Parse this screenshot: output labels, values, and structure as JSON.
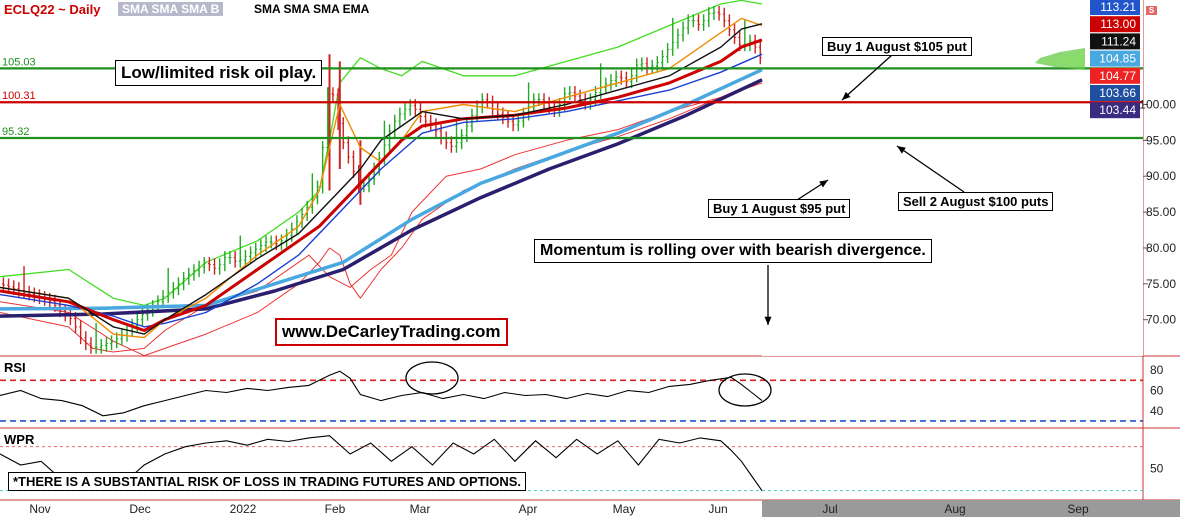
{
  "header": {
    "symbol": "ECLQ22 ~ Daily",
    "studies_tab": "SMA SMA SMA B",
    "studies_list": "SMA SMA SMA EMA",
    "control_label": "S"
  },
  "annotations": {
    "headline": "Low/limited risk oil play.",
    "website": "www.DeCarleyTrading.com",
    "buy_put_105": "Buy 1 August $105 put",
    "buy_put_95": "Buy 1 August $95 put",
    "sell_puts_100": "Sell 2 August $100 puts",
    "momentum": "Momentum is rolling over with bearish divergence.",
    "disclaimer": "*THERE IS A SUBSTANTIAL RISK OF LOSS IN TRADING FUTURES AND OPTIONS."
  },
  "colors": {
    "level_green": "#1f8f1f",
    "level_red": "#cc0000",
    "sma_fast_red": "#cc0000",
    "sma_long_blue": "#4aa8e0",
    "ema_purple": "#2a1f6e",
    "bollinger": "#44dd22",
    "thin_red": "#ee3333",
    "orange": "#f08c00",
    "price_up": "#22aa22",
    "price_down": "#cc2222"
  },
  "chart_data": [
    {
      "type": "line",
      "title": "ECLQ22 ~ Daily",
      "x_labels": [
        "Nov",
        "Dec",
        "2022",
        "Feb",
        "Mar",
        "Apr",
        "May",
        "Jun",
        "Jul",
        "Aug",
        "Sep"
      ],
      "y_ticks": [
        70,
        75,
        80,
        85,
        90,
        95,
        100
      ],
      "y_tick_labels": [
        "70.00",
        "75.00",
        "80.00",
        "85.00",
        "90.00",
        "95.00",
        "100.00"
      ],
      "ylim": [
        65.5,
        114
      ],
      "horizontal_levels": [
        {
          "value": 105.03,
          "label": "105.03",
          "color": "green"
        },
        {
          "value": 100.31,
          "label": "100.31",
          "color": "red"
        },
        {
          "value": 95.32,
          "label": "95.32",
          "color": "green"
        }
      ],
      "price_tags": [
        {
          "value": 113.21,
          "label": "113.21",
          "color": "#2255cc"
        },
        {
          "value": 113.0,
          "label": "113.00",
          "color": "#cc0000"
        },
        {
          "value": 111.24,
          "label": "111.24",
          "color": "#111111"
        },
        {
          "value": 104.85,
          "label": "104.85",
          "color": "#4aa8e0"
        },
        {
          "value": 104.77,
          "label": "104.77",
          "color": "#ee2222"
        },
        {
          "value": 103.66,
          "label": "103.66",
          "color": "#1f4fa0"
        },
        {
          "value": 103.44,
          "label": "103.44",
          "color": "#3a2a80"
        }
      ],
      "series": [
        {
          "key": "close",
          "x": [
            0,
            3,
            6,
            9,
            12,
            15,
            18,
            21,
            24,
            27,
            30,
            33,
            36,
            39,
            42,
            45,
            48,
            51,
            54,
            57,
            60,
            63,
            66,
            69,
            72,
            75,
            78,
            81,
            84,
            87,
            90,
            93,
            96,
            99,
            102,
            105,
            108,
            111,
            114,
            117,
            120,
            123,
            126,
            129,
            132,
            135,
            138,
            141,
            144,
            147,
            150,
            153,
            156,
            159,
            162,
            165,
            168,
            171,
            174,
            177,
            180,
            183,
            186,
            189,
            192,
            195,
            198,
            201,
            204,
            207,
            210,
            213,
            216,
            219,
            222
          ],
          "y": [
            75,
            74.5,
            74,
            73.5,
            73,
            72.5,
            71,
            70,
            67,
            66,
            66.5,
            67,
            68,
            69.5,
            71,
            72,
            73.5,
            74.5,
            76,
            77,
            78,
            77,
            79,
            78,
            79,
            80,
            81,
            80.5,
            82,
            84,
            86,
            89,
            104,
            96,
            92,
            88,
            90,
            93,
            97,
            99,
            100,
            98,
            97,
            95,
            94,
            96,
            99,
            101,
            99,
            98,
            97,
            99,
            101,
            100,
            99,
            102,
            101,
            100,
            102,
            103,
            104,
            103,
            106,
            105,
            106,
            108,
            110,
            112,
            111,
            113,
            112.5,
            110,
            108,
            109,
            106
          ]
        },
        {
          "key": "bollinger_upper",
          "x": [
            0,
            20,
            33,
            42,
            48,
            60,
            75,
            87,
            93,
            96,
            99,
            105,
            111,
            117,
            123,
            135,
            150,
            165,
            180,
            195,
            210,
            216,
            222
          ],
          "y": [
            76,
            77,
            73,
            72,
            73,
            78,
            81,
            85,
            88,
            95,
            103,
            106.5,
            105,
            104,
            106,
            104,
            104,
            106,
            108,
            111,
            114,
            114.5,
            114
          ]
        },
        {
          "key": "bollinger_lower",
          "x": [
            0,
            20,
            27,
            33,
            42,
            48,
            60,
            75,
            87,
            90,
            96,
            102,
            108,
            114,
            120,
            130,
            140,
            150,
            165,
            180,
            195,
            210,
            222
          ],
          "y": [
            71,
            69,
            66,
            65.5,
            66,
            68.5,
            72,
            74,
            78,
            79,
            76,
            74.5,
            77,
            79,
            85,
            90,
            91,
            93,
            95,
            96.5,
            99,
            101,
            103.5
          ]
        },
        {
          "key": "sma_black",
          "x": [
            0,
            20,
            33,
            42,
            48,
            60,
            75,
            87,
            93,
            99,
            105,
            111,
            117,
            123,
            135,
            150,
            165,
            180,
            195,
            210,
            216,
            222
          ],
          "y": [
            74.5,
            73,
            69,
            68,
            70,
            73.5,
            78.5,
            82,
            85,
            88,
            91,
            95,
            97,
            99,
            98,
            98.5,
            100,
            102,
            104,
            108,
            110.5,
            111.24
          ]
        },
        {
          "key": "sma_red",
          "x": [
            0,
            20,
            33,
            42,
            48,
            60,
            75,
            87,
            93,
            99,
            105,
            111,
            117,
            123,
            135,
            150,
            165,
            180,
            195,
            210,
            216,
            222
          ],
          "y": [
            74,
            72.5,
            70,
            68.5,
            70,
            72,
            77,
            81,
            83,
            86,
            89,
            92,
            95,
            97,
            98,
            98.5,
            99.5,
            101,
            103,
            106,
            108,
            109
          ]
        },
        {
          "key": "sma_orange",
          "x": [
            0,
            20,
            33,
            42,
            48,
            60,
            75,
            87,
            93,
            96,
            99,
            105,
            111,
            117,
            123,
            135,
            150,
            165,
            180,
            195,
            210,
            216,
            222
          ],
          "y": [
            74.5,
            73,
            68,
            67.5,
            70,
            73,
            79,
            83,
            88,
            94,
            100,
            94,
            92,
            95,
            99,
            100,
            99,
            101,
            103,
            105,
            110,
            112,
            111
          ]
        },
        {
          "key": "sma_blue_fast",
          "x": [
            0,
            20,
            33,
            42,
            48,
            60,
            75,
            87,
            93,
            99,
            105,
            111,
            117,
            123,
            135,
            150,
            165,
            180,
            195,
            210,
            222
          ],
          "y": [
            73.5,
            72,
            70.5,
            69,
            69.5,
            71,
            75,
            79,
            82,
            85,
            88,
            91,
            93.5,
            96,
            97.5,
            98,
            99,
            100.5,
            102,
            104.5,
            107
          ]
        },
        {
          "key": "thin_red",
          "x": [
            0,
            20,
            33,
            42,
            48,
            60,
            75,
            87,
            93,
            96,
            99,
            102,
            105,
            111,
            117,
            123,
            135,
            150,
            165,
            180,
            195,
            210,
            216,
            222
          ],
          "y": [
            72.5,
            71,
            67,
            65,
            66,
            68,
            71,
            75,
            78,
            80,
            79,
            75,
            73,
            77,
            80,
            84,
            88,
            91,
            93.5,
            95.5,
            98,
            101,
            102,
            103
          ]
        },
        {
          "key": "sma_long_lightblue",
          "x": [
            0,
            30,
            60,
            80,
            100,
            120,
            140,
            160,
            180,
            200,
            222
          ],
          "y": [
            71.5,
            71.6,
            72,
            75,
            78,
            84,
            89,
            92.5,
            96,
            100,
            104.85
          ]
        },
        {
          "key": "ema_purple",
          "x": [
            0,
            30,
            60,
            80,
            100,
            120,
            140,
            160,
            180,
            200,
            222
          ],
          "y": [
            70.5,
            70.8,
            71.5,
            74,
            77,
            82.5,
            87,
            91,
            94.5,
            98.5,
            103.44
          ]
        }
      ]
    },
    {
      "type": "line",
      "title": "RSI",
      "y_ticks": [
        40,
        60,
        80
      ],
      "reference_levels": [
        70,
        30
      ],
      "ylim": [
        25,
        90
      ],
      "series": [
        {
          "name": "RSI",
          "x": [
            0,
            6,
            12,
            18,
            24,
            30,
            36,
            42,
            48,
            54,
            60,
            66,
            72,
            78,
            84,
            90,
            96,
            99,
            102,
            105,
            111,
            117,
            123,
            129,
            135,
            141,
            147,
            153,
            159,
            165,
            171,
            177,
            183,
            189,
            195,
            201,
            207,
            213,
            216,
            219,
            222
          ],
          "y": [
            55,
            60,
            52,
            50,
            45,
            35,
            38,
            45,
            50,
            55,
            60,
            58,
            62,
            60,
            63,
            65,
            75,
            79,
            72,
            56,
            50,
            55,
            58,
            52,
            56,
            52,
            58,
            55,
            56,
            52,
            57,
            54,
            60,
            58,
            64,
            66,
            70,
            73,
            66,
            58,
            50
          ]
        }
      ]
    },
    {
      "type": "line",
      "title": "WPR",
      "y_ticks": [
        50
      ],
      "reference_levels": [
        80,
        20
      ],
      "ylim": [
        10,
        100
      ],
      "series": [
        {
          "name": "WPR",
          "x": [
            0,
            6,
            12,
            18,
            24,
            30,
            36,
            42,
            48,
            54,
            60,
            66,
            72,
            78,
            84,
            90,
            96,
            102,
            108,
            114,
            120,
            126,
            132,
            138,
            144,
            150,
            156,
            162,
            168,
            174,
            180,
            186,
            192,
            198,
            204,
            210,
            213,
            216,
            219,
            222
          ],
          "y": [
            70,
            55,
            60,
            35,
            40,
            25,
            30,
            55,
            70,
            80,
            85,
            88,
            82,
            90,
            87,
            92,
            95,
            70,
            85,
            60,
            80,
            55,
            85,
            70,
            90,
            60,
            88,
            65,
            90,
            70,
            88,
            55,
            90,
            85,
            92,
            88,
            75,
            60,
            40,
            20
          ]
        }
      ]
    }
  ]
}
